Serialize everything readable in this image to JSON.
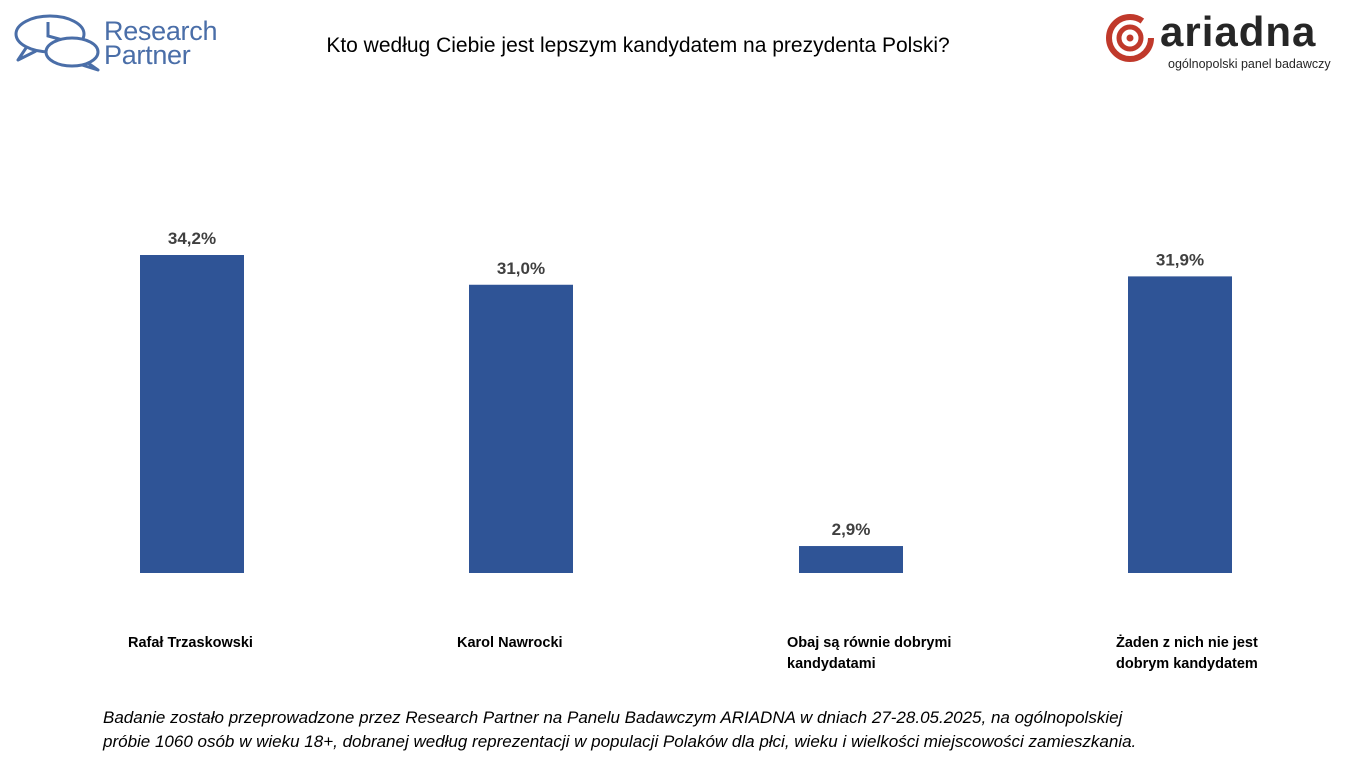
{
  "logos": {
    "left_line1": "Research",
    "left_line2": "Partner",
    "right_word": "ariadna",
    "right_sub": "ogólnopolski panel badawczy"
  },
  "chart_data": {
    "type": "bar",
    "title": "Kto według Ciebie jest lepszym kandydatem na prezydenta Polski?",
    "categories": [
      "Rafał Trzaskowski",
      "Karol Nawrocki",
      "Obaj są równie dobrymi kandydatami",
      "Żaden z nich nie jest dobrym kandydatem"
    ],
    "values": [
      34.2,
      31.0,
      2.9,
      31.9
    ],
    "value_labels": [
      "34,2%",
      "31,0%",
      "2,9%",
      "31,9%"
    ],
    "unit": "%",
    "ylim": [
      0,
      34.2
    ],
    "grid": false,
    "legend": "none",
    "bar_color": "#2f5496"
  },
  "footnote": {
    "line1": "Badanie zostało przeprowadzone przez Research Partner na Panelu Badawczym ARIADNA w dniach 27-28.05.2025, na ogólnopolskiej",
    "line2": "próbie 1060 osób w wieku 18+, dobranej według reprezentacji w populacji Polaków dla płci, wieku i wielkości miejscowości zamieszkania."
  }
}
